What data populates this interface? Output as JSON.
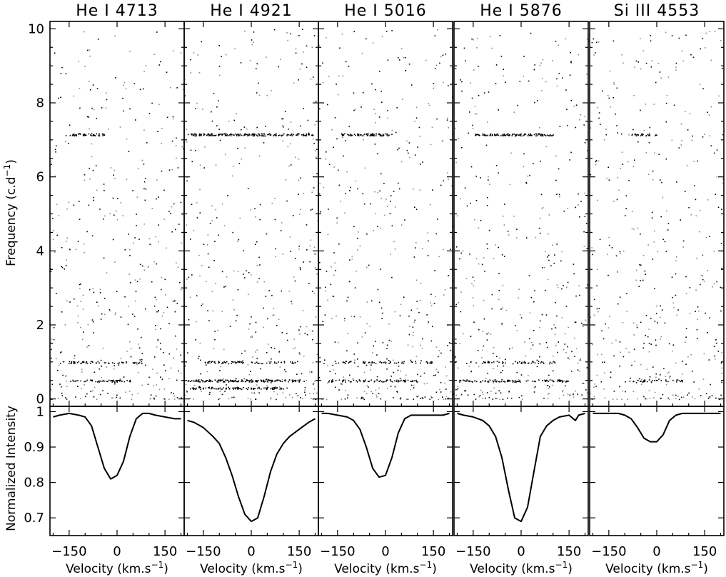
{
  "chart_data": {
    "type": "scatter",
    "panels": [
      {
        "title": "He I 4713",
        "profile": {
          "x": [
            -200,
            -180,
            -150,
            -120,
            -100,
            -80,
            -60,
            -40,
            -20,
            0,
            20,
            40,
            60,
            80,
            100,
            120,
            150,
            180,
            200
          ],
          "y": [
            0.985,
            0.99,
            0.995,
            0.99,
            0.985,
            0.96,
            0.9,
            0.84,
            0.81,
            0.82,
            0.86,
            0.93,
            0.98,
            0.995,
            0.995,
            0.99,
            0.985,
            0.98,
            0.98
          ]
        },
        "peaks": [
          {
            "freq": 7.15,
            "vmin": -150,
            "vmax": -40,
            "weight": 1.0
          },
          {
            "freq": 0.5,
            "vmin": -150,
            "vmax": 40,
            "weight": 0.6
          },
          {
            "freq": 1.0,
            "vmin": -180,
            "vmax": 80,
            "weight": 0.5
          }
        ]
      },
      {
        "title": "He I 4921",
        "profile": {
          "x": [
            -200,
            -180,
            -150,
            -120,
            -100,
            -80,
            -60,
            -40,
            -20,
            0,
            20,
            40,
            60,
            80,
            100,
            120,
            150,
            180,
            200
          ],
          "y": [
            0.975,
            0.97,
            0.955,
            0.93,
            0.91,
            0.87,
            0.82,
            0.76,
            0.71,
            0.69,
            0.7,
            0.76,
            0.83,
            0.88,
            0.91,
            0.93,
            0.95,
            0.97,
            0.98
          ]
        },
        "peaks": [
          {
            "freq": 7.15,
            "vmin": -200,
            "vmax": 200,
            "weight": 1.0
          },
          {
            "freq": 0.5,
            "vmin": -200,
            "vmax": 150,
            "weight": 0.9
          },
          {
            "freq": 0.3,
            "vmin": -200,
            "vmax": 100,
            "weight": 0.7
          },
          {
            "freq": 1.0,
            "vmin": -150,
            "vmax": 150,
            "weight": 0.5
          }
        ]
      },
      {
        "title": "He I 5016",
        "profile": {
          "x": [
            -200,
            -180,
            -150,
            -120,
            -100,
            -80,
            -60,
            -40,
            -20,
            0,
            20,
            40,
            60,
            80,
            100,
            120,
            150,
            180,
            200
          ],
          "y": [
            0.995,
            0.995,
            0.99,
            0.985,
            0.975,
            0.95,
            0.9,
            0.84,
            0.815,
            0.82,
            0.87,
            0.94,
            0.98,
            0.99,
            0.99,
            0.99,
            0.99,
            0.99,
            0.995
          ]
        },
        "peaks": [
          {
            "freq": 7.15,
            "vmin": -140,
            "vmax": 20,
            "weight": 1.0
          },
          {
            "freq": 0.5,
            "vmin": -180,
            "vmax": 100,
            "weight": 0.6
          },
          {
            "freq": 1.0,
            "vmin": -150,
            "vmax": 150,
            "weight": 0.4
          }
        ]
      },
      {
        "title": "He I 5876",
        "profile": {
          "x": [
            -200,
            -180,
            -150,
            -120,
            -100,
            -80,
            -60,
            -40,
            -20,
            0,
            20,
            40,
            60,
            80,
            100,
            120,
            150,
            170,
            180,
            200
          ],
          "y": [
            0.995,
            0.99,
            0.985,
            0.975,
            0.96,
            0.93,
            0.87,
            0.78,
            0.7,
            0.69,
            0.73,
            0.83,
            0.93,
            0.96,
            0.975,
            0.985,
            0.99,
            0.975,
            0.99,
            0.995
          ]
        },
        "peaks": [
          {
            "freq": 7.15,
            "vmin": -150,
            "vmax": 100,
            "weight": 1.0
          },
          {
            "freq": 0.5,
            "vmin": -200,
            "vmax": 150,
            "weight": 0.6
          },
          {
            "freq": 1.0,
            "vmin": -160,
            "vmax": 120,
            "weight": 0.4
          }
        ]
      },
      {
        "title": "Si III 4553",
        "profile": {
          "x": [
            -200,
            -180,
            -150,
            -120,
            -100,
            -80,
            -60,
            -40,
            -20,
            0,
            20,
            40,
            60,
            80,
            100,
            120,
            150,
            180,
            200
          ],
          "y": [
            0.995,
            0.995,
            0.995,
            0.995,
            0.99,
            0.98,
            0.955,
            0.925,
            0.915,
            0.915,
            0.935,
            0.975,
            0.99,
            0.995,
            0.995,
            0.995,
            0.995,
            0.995,
            0.995
          ]
        },
        "peaks": [
          {
            "freq": 7.15,
            "vmin": -80,
            "vmax": 0,
            "weight": 0.7
          },
          {
            "freq": 0.5,
            "vmin": -100,
            "vmax": 80,
            "weight": 0.4
          }
        ]
      }
    ],
    "xlim": [
      -210,
      210
    ],
    "xticks": [
      -150,
      0,
      150
    ],
    "xlabel": "Velocity (km.s",
    "xlabel_sup": "−1",
    "xlabel_end": ")",
    "ylim_freq": [
      -0.2,
      10.2
    ],
    "yticks_freq": [
      0,
      2,
      4,
      6,
      8,
      10
    ],
    "ylabel_freq": "Frequency (c.d",
    "ylabel_freq_sup": "−1",
    "ylabel_freq_end": ")",
    "ylim_profile": [
      0.65,
      1.015
    ],
    "yticks_profile": [
      0.7,
      0.8,
      0.9,
      1
    ],
    "ylabel_profile": "Normalized Intensity",
    "grid": false
  }
}
